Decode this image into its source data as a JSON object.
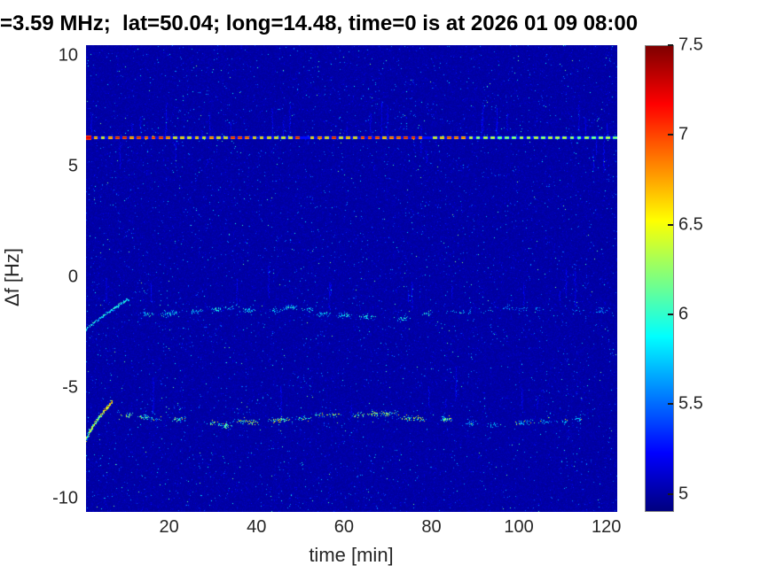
{
  "figure": {
    "kind": "matlab-spectrogram-figure",
    "background_color": "#ffffff",
    "text_color": "#262626",
    "title_color": "#000000"
  },
  "chart_data": {
    "type": "heatmap",
    "subtype": "doppler-spectrogram",
    "title": "=3.59 MHz;  lat=50.04; long=14.48, time=0 is at 2026 01 09 08:00",
    "xlabel": "time [min]",
    "ylabel": "Δf [Hz]",
    "xlim": [
      1,
      122.5
    ],
    "ylim": [
      -10.6,
      10.5
    ],
    "xticks": [
      20,
      40,
      60,
      80,
      100,
      120
    ],
    "yticks": [
      10,
      5,
      0,
      -5,
      -10
    ],
    "grid": false,
    "legend": "none",
    "colormap": "jet",
    "colorbar": {
      "position": "right",
      "ticks": [
        7.5,
        7,
        6.5,
        6,
        5.5,
        5
      ],
      "clim": [
        4.9,
        7.5
      ]
    },
    "background_level": 4.97,
    "noise": {
      "speckle_density": 0.02,
      "speckle_level_range": [
        5.1,
        5.65
      ],
      "bright_speckle_density": 0.0018,
      "bright_speckle_level_range": [
        5.6,
        6.25
      ],
      "vertical_streak_count": 52,
      "streak_extra_level": 0.22
    },
    "features": [
      {
        "id": "carrier-dashed-line",
        "type": "dashed_horizontal_line",
        "y_hz": 6.3,
        "x_range_min": [
          1,
          122.5
        ],
        "level_range_left": [
          6.6,
          7.3
        ],
        "level_range_right": [
          6.35,
          6.6
        ],
        "fade_after_min": 88,
        "dash_period_min": 1.65,
        "gap_level": 5.25,
        "left_end_blob_level": 7.3,
        "description": "bright red/orange/yellow dashed line spanning full width, yellow-green toward the right"
      },
      {
        "id": "upper-doppler-trace",
        "type": "scattered_trace",
        "y_hz": -1.6,
        "x_range_min": [
          1,
          122.5
        ],
        "level_range": [
          5.45,
          6.1
        ],
        "hook_rise_hz": 1.4,
        "fade_after_min": 88,
        "description": "faint intermittent cyan-blue wavy trace, rising arc at left edge"
      },
      {
        "id": "lower-doppler-trace",
        "type": "scattered_trace",
        "y_hz": -6.4,
        "x_range_min": [
          1,
          122.5
        ],
        "level_range": [
          5.55,
          6.55
        ],
        "hook_rise_hz": 1.8,
        "fade_after_min": 88,
        "description": "stronger intermittent cyan-green wavy trace with yellow-green bright spots, hook-shaped arc at left edge"
      }
    ]
  }
}
